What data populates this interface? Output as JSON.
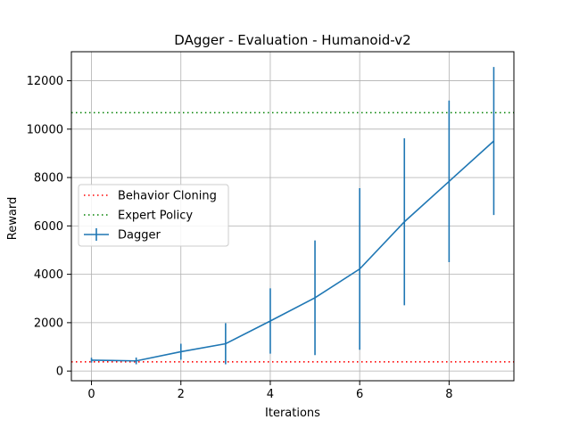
{
  "chart_data": {
    "type": "line",
    "title": "DAgger - Evaluation - Humanoid-v2",
    "xlabel": "Iterations",
    "ylabel": "Reward",
    "xlim": [
      -0.45,
      9.45
    ],
    "ylim": [
      -400,
      13200
    ],
    "xticks": [
      0,
      2,
      4,
      6,
      8
    ],
    "yticks": [
      0,
      2000,
      4000,
      6000,
      8000,
      10000,
      12000
    ],
    "grid": true,
    "legend_position": "center-left",
    "series": [
      {
        "name": "Dagger",
        "color": "#1f77b4",
        "style": "solid",
        "x": [
          0,
          1,
          2,
          3,
          4,
          5,
          6,
          7,
          8,
          9
        ],
        "y": [
          450,
          420,
          800,
          1130,
          2070,
          3030,
          4220,
          6170,
          7840,
          9510
        ],
        "yerr": [
          100,
          140,
          330,
          850,
          1350,
          2370,
          3340,
          3450,
          3340,
          3060
        ]
      }
    ],
    "hlines": [
      {
        "name": "Behavior Cloning",
        "y": 380,
        "color": "#ff0000",
        "style": "dotted"
      },
      {
        "name": "Expert Policy",
        "y": 10680,
        "color": "#008000",
        "style": "dotted"
      }
    ],
    "legend_order": [
      "Behavior Cloning",
      "Expert Policy",
      "Dagger"
    ]
  }
}
